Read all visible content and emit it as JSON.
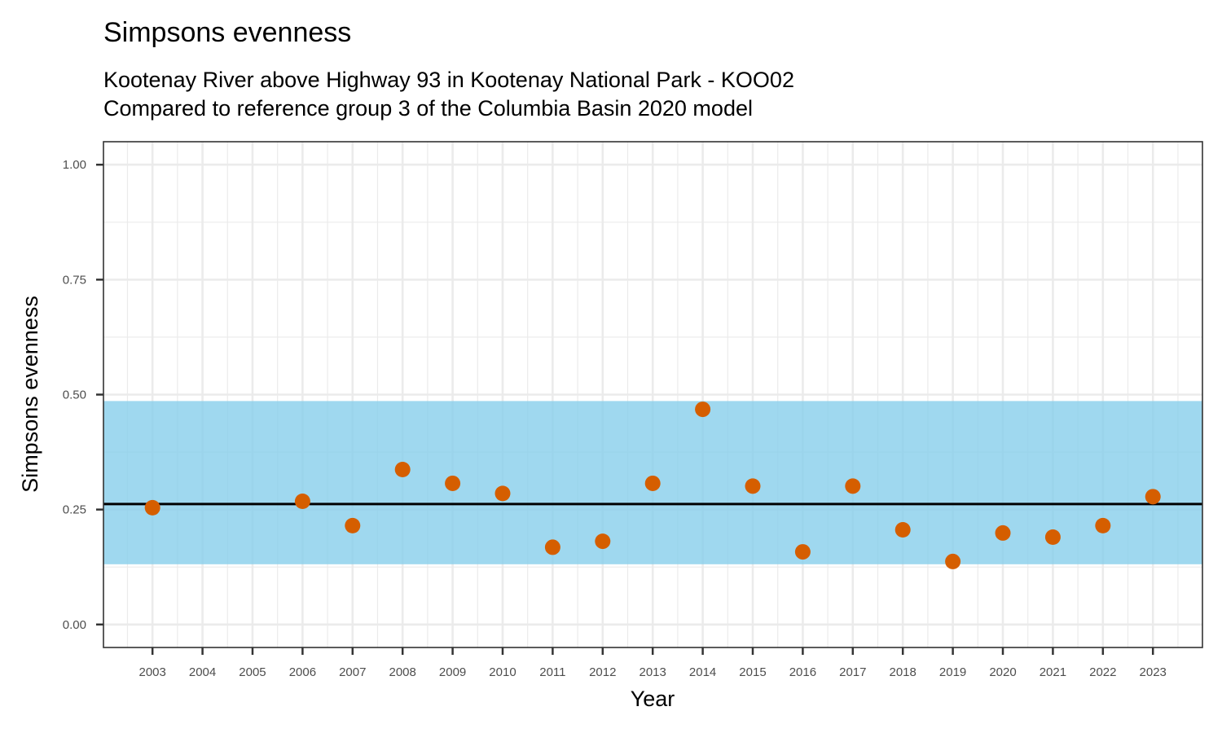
{
  "chart_data": {
    "type": "scatter",
    "title": "Simpsons evenness",
    "subtitle_lines": [
      "Kootenay River above Highway 93 in Kootenay National Park - KOO02",
      "Compared to reference group 3 of the Columbia Basin 2020 model"
    ],
    "xlabel": "Year",
    "ylabel": "Simpsons evenness",
    "xlim": [
      2002.02,
      2023.99
    ],
    "ylim": [
      -0.05,
      1.05
    ],
    "x_ticks": [
      2003,
      2004,
      2005,
      2006,
      2007,
      2008,
      2009,
      2010,
      2011,
      2012,
      2013,
      2014,
      2015,
      2016,
      2017,
      2018,
      2019,
      2020,
      2021,
      2022,
      2023
    ],
    "y_ticks": [
      0.0,
      0.25,
      0.5,
      0.75,
      1.0
    ],
    "y_tick_labels": [
      "0.00",
      "0.25",
      "0.50",
      "0.75",
      "1.00"
    ],
    "grid": true,
    "reference_band": {
      "lower": 0.131,
      "upper": 0.486,
      "color": "#87CEEB"
    },
    "reference_mean": 0.262,
    "series": [
      {
        "name": "Simpsons evenness",
        "color": "#D55E00",
        "points": [
          {
            "x": 2003,
            "y": 0.254
          },
          {
            "x": 2006,
            "y": 0.268
          },
          {
            "x": 2007,
            "y": 0.215
          },
          {
            "x": 2008,
            "y": 0.337
          },
          {
            "x": 2009,
            "y": 0.307
          },
          {
            "x": 2010,
            "y": 0.285
          },
          {
            "x": 2011,
            "y": 0.168
          },
          {
            "x": 2012,
            "y": 0.181
          },
          {
            "x": 2013,
            "y": 0.307
          },
          {
            "x": 2014,
            "y": 0.468
          },
          {
            "x": 2015,
            "y": 0.301
          },
          {
            "x": 2016,
            "y": 0.158
          },
          {
            "x": 2017,
            "y": 0.301
          },
          {
            "x": 2018,
            "y": 0.206
          },
          {
            "x": 2019,
            "y": 0.137
          },
          {
            "x": 2020,
            "y": 0.199
          },
          {
            "x": 2021,
            "y": 0.19
          },
          {
            "x": 2022,
            "y": 0.215
          },
          {
            "x": 2023,
            "y": 0.278
          }
        ]
      }
    ]
  }
}
